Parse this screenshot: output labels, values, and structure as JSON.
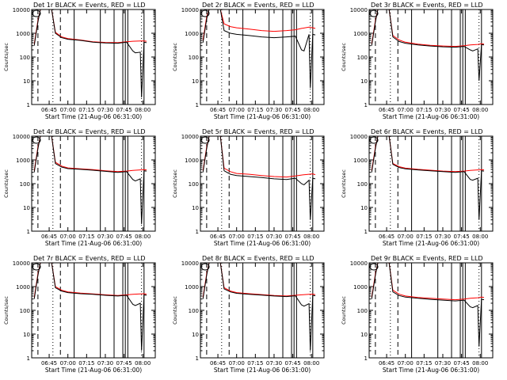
{
  "window": {
    "background": "#ffffff"
  },
  "colors": {
    "events": "#000000",
    "lld": "#ff0000",
    "axes": "#000000"
  },
  "chart_data": [
    {
      "type": "line",
      "title": "Det 1r BLACK = Events, RED = LLD",
      "xlabel": "Start Time (21-Aug-06 06:31:00)",
      "ylabel": "Counts/sec",
      "ylim": [
        1,
        10000
      ],
      "yscale": "log",
      "x_ticks": [
        "06:45",
        "07:00",
        "07:15",
        "07:30",
        "07:45",
        "08:00"
      ],
      "y_ticks": [
        "1",
        "10",
        "100",
        "1000",
        "10000"
      ],
      "series": [
        {
          "name": "Events",
          "color": "#000000",
          "x": [
            "06:33",
            "06:36",
            "06:38",
            "06:42",
            "06:47",
            "06:50",
            "06:55",
            "07:00",
            "07:10",
            "07:20",
            "07:30",
            "07:40",
            "07:47",
            "07:52",
            "07:54",
            "07:58",
            "07:59",
            "08:01",
            "08:03"
          ],
          "values": [
            300,
            3000,
            10000,
            10000,
            10000,
            1000,
            650,
            560,
            500,
            420,
            390,
            380,
            420,
            180,
            150,
            160,
            2,
            420,
            400
          ]
        },
        {
          "name": "LLD",
          "color": "#ff0000",
          "x": [
            "06:33",
            "06:36",
            "06:38",
            "06:42",
            "06:47",
            "06:50",
            "06:55",
            "07:00",
            "07:10",
            "07:20",
            "07:30",
            "07:40",
            "07:47",
            "07:52",
            "07:58",
            "08:01",
            "08:03"
          ],
          "values": [
            350,
            3500,
            10000,
            10000,
            10000,
            1100,
            700,
            600,
            520,
            440,
            410,
            400,
            440,
            460,
            470,
            470,
            460
          ]
        }
      ]
    },
    {
      "type": "line",
      "title": "Det 2r BLACK = Events, RED = LLD",
      "xlabel": "Start Time (21-Aug-06 06:31:00)",
      "ylabel": "Counts/sec",
      "ylim": [
        1,
        10000
      ],
      "yscale": "log",
      "x_ticks": [
        "06:45",
        "07:00",
        "07:15",
        "07:30",
        "07:45",
        "08:00"
      ],
      "y_ticks": [
        "1",
        "10",
        "100",
        "1000",
        "10000"
      ],
      "series": [
        {
          "name": "Events",
          "color": "#000000",
          "x": [
            "06:33",
            "06:36",
            "06:38",
            "06:42",
            "06:47",
            "06:50",
            "06:55",
            "07:00",
            "07:10",
            "07:20",
            "07:30",
            "07:40",
            "07:47",
            "07:52",
            "07:54",
            "07:58",
            "07:59",
            "08:01",
            "08:03"
          ],
          "values": [
            400,
            4000,
            10000,
            10000,
            10000,
            1300,
            1000,
            900,
            800,
            700,
            650,
            700,
            750,
            200,
            180,
            900,
            5,
            900,
            850
          ]
        },
        {
          "name": "LLD",
          "color": "#ff0000",
          "x": [
            "06:33",
            "06:36",
            "06:38",
            "06:42",
            "06:47",
            "06:50",
            "06:55",
            "07:00",
            "07:10",
            "07:20",
            "07:30",
            "07:40",
            "07:47",
            "07:52",
            "07:58",
            "08:01",
            "08:03"
          ],
          "values": [
            500,
            5000,
            10000,
            10000,
            10000,
            2500,
            1900,
            1700,
            1500,
            1300,
            1200,
            1300,
            1400,
            1600,
            1800,
            1700,
            1600
          ]
        }
      ]
    },
    {
      "type": "line",
      "title": "Det 3r BLACK = Events, RED = LLD",
      "xlabel": "Start Time (21-Aug-06 06:31:00)",
      "ylabel": "Counts/sec",
      "ylim": [
        1,
        10000
      ],
      "yscale": "log",
      "x_ticks": [
        "06:45",
        "07:00",
        "07:15",
        "07:30",
        "07:45",
        "08:00"
      ],
      "y_ticks": [
        "1",
        "10",
        "100",
        "1000",
        "10000"
      ],
      "series": [
        {
          "name": "Events",
          "color": "#000000",
          "x": [
            "06:33",
            "06:36",
            "06:38",
            "06:42",
            "06:47",
            "06:50",
            "06:55",
            "07:00",
            "07:10",
            "07:20",
            "07:30",
            "07:40",
            "07:47",
            "07:52",
            "07:54",
            "07:58",
            "07:59",
            "08:01",
            "08:03"
          ],
          "values": [
            300,
            3000,
            10000,
            10000,
            10000,
            700,
            450,
            380,
            320,
            290,
            270,
            260,
            280,
            200,
            180,
            220,
            10,
            330,
            320
          ]
        },
        {
          "name": "LLD",
          "color": "#ff0000",
          "x": [
            "06:33",
            "06:36",
            "06:38",
            "06:42",
            "06:47",
            "06:50",
            "06:55",
            "07:00",
            "07:10",
            "07:20",
            "07:30",
            "07:40",
            "07:47",
            "07:52",
            "07:58",
            "08:01",
            "08:03"
          ],
          "values": [
            350,
            3500,
            10000,
            10000,
            10000,
            800,
            520,
            420,
            350,
            310,
            290,
            280,
            300,
            320,
            340,
            360,
            350
          ]
        }
      ]
    },
    {
      "type": "line",
      "title": "Det 4r BLACK = Events, RED = LLD",
      "xlabel": "Start Time (21-Aug-06 06:31:00)",
      "ylabel": "Counts/sec",
      "ylim": [
        1,
        10000
      ],
      "yscale": "log",
      "x_ticks": [
        "06:45",
        "07:00",
        "07:15",
        "07:30",
        "07:45",
        "08:00"
      ],
      "y_ticks": [
        "1",
        "10",
        "100",
        "1000",
        "10000"
      ],
      "series": [
        {
          "name": "Events",
          "color": "#000000",
          "x": [
            "06:33",
            "06:36",
            "06:38",
            "06:42",
            "06:47",
            "06:50",
            "06:55",
            "07:00",
            "07:10",
            "07:20",
            "07:30",
            "07:40",
            "07:47",
            "07:52",
            "07:54",
            "07:58",
            "07:59",
            "08:01",
            "08:03"
          ],
          "values": [
            300,
            3000,
            10000,
            10000,
            10000,
            700,
            500,
            430,
            400,
            370,
            330,
            300,
            320,
            150,
            130,
            160,
            2,
            350,
            340
          ]
        },
        {
          "name": "LLD",
          "color": "#ff0000",
          "x": [
            "06:33",
            "06:36",
            "06:38",
            "06:42",
            "06:47",
            "06:50",
            "06:55",
            "07:00",
            "07:10",
            "07:20",
            "07:30",
            "07:40",
            "07:47",
            "07:52",
            "07:58",
            "08:01",
            "08:03"
          ],
          "values": [
            350,
            3500,
            10000,
            10000,
            10000,
            800,
            550,
            460,
            420,
            390,
            350,
            320,
            340,
            360,
            380,
            390,
            380
          ]
        }
      ]
    },
    {
      "type": "line",
      "title": "Det 5r BLACK = Events, RED = LLD",
      "xlabel": "Start Time (21-Aug-06 06:31:00)",
      "ylabel": "Counts/sec",
      "ylim": [
        1,
        10000
      ],
      "yscale": "log",
      "x_ticks": [
        "06:45",
        "07:00",
        "07:15",
        "07:30",
        "07:45",
        "08:00"
      ],
      "y_ticks": [
        "1",
        "10",
        "100",
        "1000",
        "10000"
      ],
      "series": [
        {
          "name": "Events",
          "color": "#000000",
          "x": [
            "06:33",
            "06:36",
            "06:38",
            "06:42",
            "06:47",
            "06:50",
            "06:55",
            "07:00",
            "07:10",
            "07:20",
            "07:30",
            "07:40",
            "07:47",
            "07:52",
            "07:54",
            "07:58",
            "07:59",
            "08:01",
            "08:03"
          ],
          "values": [
            300,
            3000,
            10000,
            10000,
            10000,
            350,
            250,
            220,
            200,
            180,
            160,
            150,
            170,
            100,
            90,
            140,
            3,
            170,
            160
          ]
        },
        {
          "name": "LLD",
          "color": "#ff0000",
          "x": [
            "06:33",
            "06:36",
            "06:38",
            "06:42",
            "06:47",
            "06:50",
            "06:55",
            "07:00",
            "07:10",
            "07:20",
            "07:30",
            "07:40",
            "07:47",
            "07:52",
            "07:58",
            "08:01",
            "08:03"
          ],
          "values": [
            350,
            3500,
            10000,
            10000,
            10000,
            450,
            320,
            270,
            250,
            220,
            200,
            190,
            210,
            230,
            250,
            260,
            240
          ]
        }
      ]
    },
    {
      "type": "line",
      "title": "Det 6r BLACK = Events, RED = LLD",
      "xlabel": "Start Time (21-Aug-06 06:31:00)",
      "ylabel": "Counts/sec",
      "ylim": [
        1,
        10000
      ],
      "yscale": "log",
      "x_ticks": [
        "06:45",
        "07:00",
        "07:15",
        "07:30",
        "07:45",
        "08:00"
      ],
      "y_ticks": [
        "1",
        "10",
        "100",
        "1000",
        "10000"
      ],
      "series": [
        {
          "name": "Events",
          "color": "#000000",
          "x": [
            "06:33",
            "06:36",
            "06:38",
            "06:42",
            "06:47",
            "06:50",
            "06:55",
            "07:00",
            "07:10",
            "07:20",
            "07:30",
            "07:40",
            "07:47",
            "07:52",
            "07:54",
            "07:58",
            "07:59",
            "08:01",
            "08:03"
          ],
          "values": [
            300,
            3000,
            10000,
            10000,
            10000,
            650,
            480,
            420,
            380,
            350,
            320,
            300,
            320,
            150,
            140,
            170,
            3,
            350,
            340
          ]
        },
        {
          "name": "LLD",
          "color": "#ff0000",
          "x": [
            "06:33",
            "06:36",
            "06:38",
            "06:42",
            "06:47",
            "06:50",
            "06:55",
            "07:00",
            "07:10",
            "07:20",
            "07:30",
            "07:40",
            "07:47",
            "07:52",
            "07:58",
            "08:01",
            "08:03"
          ],
          "values": [
            350,
            3500,
            10000,
            10000,
            10000,
            700,
            520,
            450,
            400,
            370,
            340,
            320,
            340,
            360,
            380,
            390,
            380
          ]
        }
      ]
    },
    {
      "type": "line",
      "title": "Det 7r BLACK = Events, RED = LLD",
      "xlabel": "Start Time (21-Aug-06 06:31:00)",
      "ylabel": "Counts/sec",
      "ylim": [
        1,
        10000
      ],
      "yscale": "log",
      "x_ticks": [
        "06:45",
        "07:00",
        "07:15",
        "07:30",
        "07:45",
        "08:00"
      ],
      "y_ticks": [
        "1",
        "10",
        "100",
        "1000",
        "10000"
      ],
      "series": [
        {
          "name": "Events",
          "color": "#000000",
          "x": [
            "06:33",
            "06:36",
            "06:38",
            "06:42",
            "06:47",
            "06:50",
            "06:55",
            "07:00",
            "07:10",
            "07:20",
            "07:30",
            "07:40",
            "07:47",
            "07:52",
            "07:54",
            "07:58",
            "07:59",
            "08:01",
            "08:03"
          ],
          "values": [
            300,
            3000,
            10000,
            10000,
            10000,
            900,
            650,
            560,
            500,
            470,
            430,
            400,
            430,
            180,
            160,
            200,
            2,
            450,
            430
          ]
        },
        {
          "name": "LLD",
          "color": "#ff0000",
          "x": [
            "06:33",
            "06:36",
            "06:38",
            "06:42",
            "06:47",
            "06:50",
            "06:55",
            "07:00",
            "07:10",
            "07:20",
            "07:30",
            "07:40",
            "07:47",
            "07:52",
            "07:58",
            "08:01",
            "08:03"
          ],
          "values": [
            350,
            3500,
            10000,
            10000,
            10000,
            1000,
            700,
            600,
            530,
            490,
            450,
            420,
            450,
            470,
            490,
            500,
            480
          ]
        }
      ]
    },
    {
      "type": "line",
      "title": "Det 8r BLACK = Events, RED = LLD",
      "xlabel": "Start Time (21-Aug-06 06:31:00)",
      "ylabel": "Counts/sec",
      "ylim": [
        1,
        10000
      ],
      "yscale": "log",
      "x_ticks": [
        "06:45",
        "07:00",
        "07:15",
        "07:30",
        "07:45",
        "08:00"
      ],
      "y_ticks": [
        "1",
        "10",
        "100",
        "1000",
        "10000"
      ],
      "series": [
        {
          "name": "Events",
          "color": "#000000",
          "x": [
            "06:33",
            "06:36",
            "06:38",
            "06:42",
            "06:47",
            "06:50",
            "06:55",
            "07:00",
            "07:10",
            "07:20",
            "07:30",
            "07:40",
            "07:47",
            "07:52",
            "07:54",
            "07:58",
            "07:59",
            "08:01",
            "08:03"
          ],
          "values": [
            300,
            3000,
            10000,
            10000,
            10000,
            800,
            600,
            520,
            470,
            440,
            400,
            380,
            410,
            170,
            150,
            190,
            2,
            430,
            410
          ]
        },
        {
          "name": "LLD",
          "color": "#ff0000",
          "x": [
            "06:33",
            "06:36",
            "06:38",
            "06:42",
            "06:47",
            "06:50",
            "06:55",
            "07:00",
            "07:10",
            "07:20",
            "07:30",
            "07:40",
            "07:47",
            "07:52",
            "07:58",
            "08:01",
            "08:03"
          ],
          "values": [
            350,
            3500,
            10000,
            10000,
            10000,
            900,
            650,
            560,
            500,
            460,
            420,
            400,
            430,
            450,
            470,
            480,
            460
          ]
        }
      ]
    },
    {
      "type": "line",
      "title": "Det 9r BLACK = Events, RED = LLD",
      "xlabel": "Start Time (21-Aug-06 06:31:00)",
      "ylabel": "Counts/sec",
      "ylim": [
        1,
        10000
      ],
      "yscale": "log",
      "x_ticks": [
        "06:45",
        "07:00",
        "07:15",
        "07:30",
        "07:45",
        "08:00"
      ],
      "y_ticks": [
        "1",
        "10",
        "100",
        "1000",
        "10000"
      ],
      "series": [
        {
          "name": "Events",
          "color": "#000000",
          "x": [
            "06:33",
            "06:36",
            "06:38",
            "06:42",
            "06:47",
            "06:50",
            "06:55",
            "07:00",
            "07:10",
            "07:20",
            "07:30",
            "07:40",
            "07:47",
            "07:52",
            "07:54",
            "07:58",
            "07:59",
            "08:01",
            "08:03"
          ],
          "values": [
            300,
            3000,
            10000,
            10000,
            10000,
            600,
            420,
            360,
            320,
            290,
            270,
            250,
            270,
            140,
            130,
            160,
            3,
            290,
            280
          ]
        },
        {
          "name": "LLD",
          "color": "#ff0000",
          "x": [
            "06:33",
            "06:36",
            "06:38",
            "06:42",
            "06:47",
            "06:50",
            "06:55",
            "07:00",
            "07:10",
            "07:20",
            "07:30",
            "07:40",
            "07:47",
            "07:52",
            "07:58",
            "08:01",
            "08:03"
          ],
          "values": [
            350,
            3500,
            10000,
            10000,
            10000,
            700,
            480,
            400,
            350,
            320,
            300,
            280,
            300,
            320,
            340,
            360,
            350
          ]
        }
      ]
    }
  ]
}
